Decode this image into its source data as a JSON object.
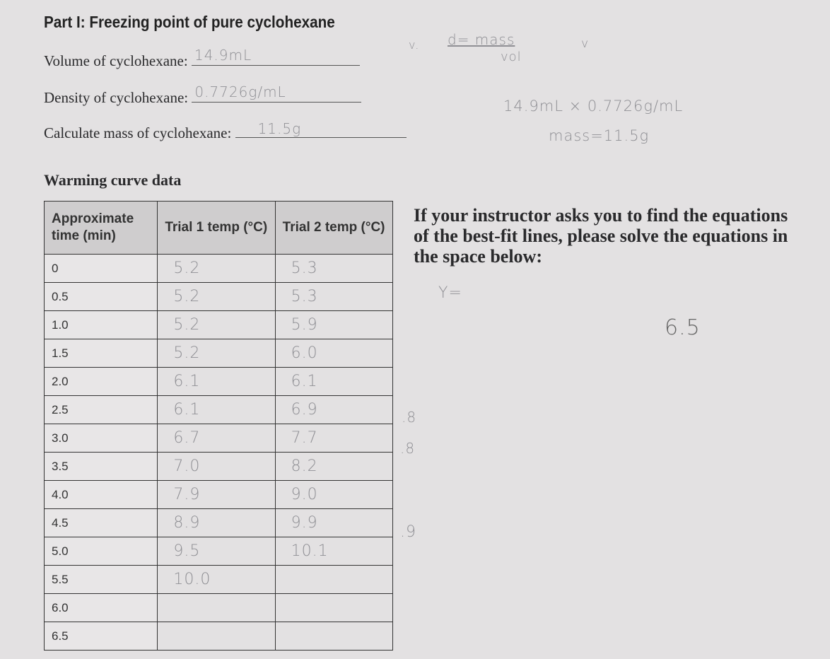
{
  "title": "Part I: Freezing point of pure cyclohexane",
  "fields": [
    {
      "label": "Volume of cyclohexane:",
      "value": "14.9mL"
    },
    {
      "label": "Density of cyclohexane:",
      "value": "0.7726g/mL"
    },
    {
      "label": "Calculate mass of cyclohexane:",
      "value": "11.5g"
    }
  ],
  "notes": {
    "formula_num": "d= mass",
    "formula_den": "vol",
    "check1": "v.",
    "check2": "v",
    "calc": "14.9mL × 0.7726g/mL",
    "mass": "mass=11.5g",
    "y_eq": "Y=",
    "value": "6.5",
    "margin1": ".8",
    "margin2": ".8",
    "margin3": ".9"
  },
  "section_title": "Warming curve data",
  "table": {
    "headers": [
      "Approximate time (min)",
      "Trial 1 temp (°C)",
      "Trial 2 temp (°C)"
    ],
    "rows": [
      [
        "0",
        "5.2",
        "5.3"
      ],
      [
        "0.5",
        "5.2",
        "5.3"
      ],
      [
        "1.0",
        "5.2",
        "5.9"
      ],
      [
        "1.5",
        "5.2",
        "6.0"
      ],
      [
        "2.0",
        "6.1",
        "6.1"
      ],
      [
        "2.5",
        "6.1",
        "6.9"
      ],
      [
        "3.0",
        "6.7",
        "7.7"
      ],
      [
        "3.5",
        "7.0",
        "8.2"
      ],
      [
        "4.0",
        "7.9",
        "9.0"
      ],
      [
        "4.5",
        "8.9",
        "9.9"
      ],
      [
        "5.0",
        "9.5",
        "10.1"
      ],
      [
        "5.5",
        "10.0",
        ""
      ],
      [
        "6.0",
        "",
        ""
      ],
      [
        "6.5",
        "",
        ""
      ]
    ]
  },
  "instructions": "If your instructor asks you to find the equations of the best-fit lines, please solve the equations in the space below:"
}
